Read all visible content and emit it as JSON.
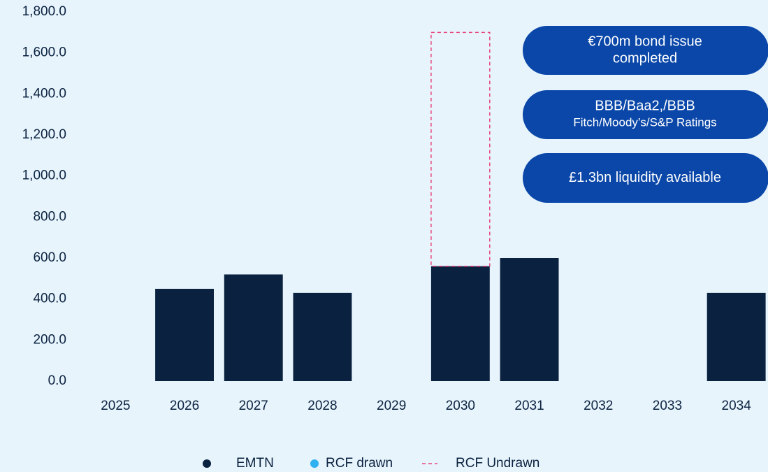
{
  "chart_data": {
    "type": "bar",
    "stacked": true,
    "categories": [
      "2025",
      "2026",
      "2027",
      "2028",
      "2029",
      "2030",
      "2031",
      "2032",
      "2033",
      "2034"
    ],
    "series": [
      {
        "name": "EMTN",
        "color": "#0a2240",
        "style": "solid",
        "values": [
          null,
          450,
          520,
          430,
          null,
          560,
          600,
          null,
          null,
          430
        ]
      },
      {
        "name": "RCF drawn",
        "color": "#2fb0f0",
        "style": "solid",
        "values": [
          null,
          null,
          null,
          null,
          null,
          null,
          null,
          null,
          null,
          null
        ]
      },
      {
        "name": "RCF Undrawn",
        "color": "#e8467c",
        "style": "dashed",
        "values": [
          null,
          null,
          null,
          null,
          null,
          1140,
          null,
          null,
          null,
          null
        ]
      }
    ],
    "ylim": [
      0,
      1800
    ],
    "yticks": [
      {
        "value": 0,
        "label": "0.0"
      },
      {
        "value": 200,
        "label": "200.0"
      },
      {
        "value": 400,
        "label": "400.0"
      },
      {
        "value": 600,
        "label": "600.0"
      },
      {
        "value": 800,
        "label": "800.0"
      },
      {
        "value": 1000,
        "label": "1,000.0"
      },
      {
        "value": 1200,
        "label": "1,200.0"
      },
      {
        "value": 1400,
        "label": "1,400.0"
      },
      {
        "value": 1600,
        "label": "1,600.0"
      },
      {
        "value": 1800,
        "label": "1,800.0"
      }
    ],
    "grid": false,
    "legend": "bottom",
    "annotations": [
      {
        "lines": [
          "€700m bond issue",
          "completed"
        ]
      },
      {
        "lines": [
          "BBB/Baa2,/BBB",
          "Fitch/Moody’s/S&P Ratings"
        ]
      },
      {
        "lines": [
          "£1.3bn liquidity available"
        ]
      }
    ],
    "annotation_color": "#0a47a8"
  }
}
